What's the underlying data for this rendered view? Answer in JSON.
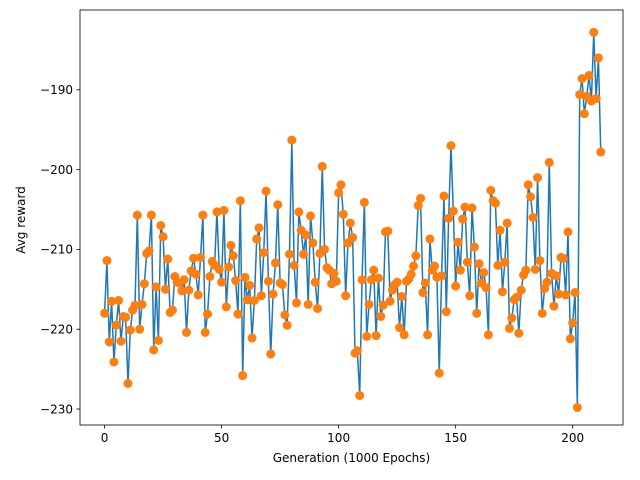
{
  "chart_data": {
    "type": "line",
    "title": "",
    "xlabel": "Generation (1000 Epochs)",
    "ylabel": "Avg reward",
    "xlim": [
      -10.5,
      221.5
    ],
    "ylim": [
      -232,
      -180
    ],
    "xticks": [
      0,
      50,
      100,
      150,
      200
    ],
    "yticks": [
      -230,
      -220,
      -210,
      -200,
      -190
    ],
    "grid": false,
    "legend": "none",
    "line_color": "#1f77b4",
    "marker_color": "#ff7f0e",
    "series": [
      {
        "values": [
          -218.0,
          -211.4,
          -221.6,
          -216.5,
          -224.1,
          -219.5,
          -216.4,
          -221.5,
          -218.4,
          -218.5,
          -226.8,
          -220.1,
          -217.6,
          -217.0,
          -205.7,
          -220.0,
          -216.9,
          -214.3,
          -210.5,
          -210.2,
          -205.7,
          -222.6,
          -214.7,
          -221.4,
          -207.0,
          -208.4,
          -215.0,
          -211.2,
          -217.9,
          -217.6,
          -213.4,
          -214.1,
          -214.2,
          -215.2,
          -213.8,
          -220.4,
          -215.1,
          -212.7,
          -211.1,
          -213.1,
          -215.7,
          -211.0,
          -205.7,
          -220.4,
          -218.1,
          -213.4,
          -211.5,
          -212.0,
          -205.3,
          -212.5,
          -214.1,
          -205.1,
          -217.2,
          -212.2,
          -209.5,
          -210.8,
          -213.9,
          -218.1,
          -203.9,
          -225.8,
          -213.5,
          -216.3,
          -214.5,
          -221.1,
          -216.4,
          -208.7,
          -207.3,
          -215.8,
          -210.4,
          -202.7,
          -214.0,
          -223.1,
          -215.6,
          -211.7,
          -204.4,
          -214.2,
          -214.4,
          -218.2,
          -219.5,
          -210.6,
          -196.3,
          -212.0,
          -216.7,
          -205.3,
          -207.6,
          -210.6,
          -208.2,
          -216.9,
          -205.8,
          -209.2,
          -214.1,
          -217.4,
          -210.5,
          -199.6,
          -210.0,
          -212.3,
          -212.6,
          -214.3,
          -213.0,
          -214.0,
          -202.9,
          -201.9,
          -205.6,
          -215.8,
          -209.2,
          -206.7,
          -208.5,
          -223.0,
          -222.7,
          -228.3,
          -213.8,
          -204.1,
          -220.9,
          -216.9,
          -213.8,
          -212.6,
          -220.8,
          -213.6,
          -218.4,
          -217.0,
          -207.8,
          -207.7,
          -216.5,
          -215.1,
          -214.4,
          -214.1,
          -219.8,
          -215.9,
          -220.7,
          -214.0,
          -213.7,
          -213.1,
          -212.1,
          -210.8,
          -204.5,
          -203.6,
          -215.4,
          -214.2,
          -220.7,
          -208.7,
          -212.6,
          -212.1,
          -213.5,
          -225.5,
          -213.3,
          -203.3,
          -217.8,
          -206.1,
          -197.0,
          -205.2,
          -214.6,
          -209.1,
          -212.6,
          -206.2,
          -204.7,
          -211.6,
          -215.8,
          -204.8,
          -209.7,
          -218.0,
          -211.8,
          -214.2,
          -212.9,
          -214.8,
          -220.7,
          -202.6,
          -203.9,
          -204.2,
          -212.0,
          -207.6,
          -215.3,
          -211.6,
          -206.7,
          -219.9,
          -218.6,
          -216.3,
          -216.0,
          -220.5,
          -215.1,
          -213.2,
          -212.6,
          -201.9,
          -203.4,
          -206.0,
          -212.5,
          -201.0,
          -211.4,
          -218.0,
          -214.9,
          -214.1,
          -199.1,
          -213.0,
          -217.1,
          -213.3,
          -215.6,
          -211.0,
          -211.1,
          -215.7,
          -207.8,
          -221.2,
          -219.2,
          -215.4,
          -229.8,
          -190.6,
          -188.6,
          -193.0,
          -190.8,
          -188.2,
          -191.4,
          -182.8,
          -191.1,
          -186.0,
          -197.8
        ]
      }
    ]
  }
}
